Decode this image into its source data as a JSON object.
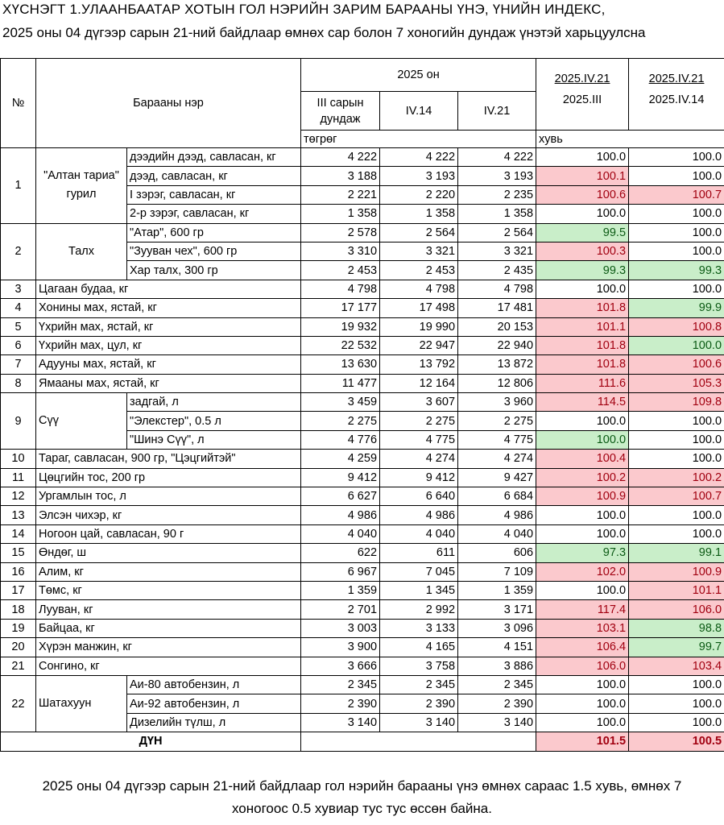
{
  "title_line1": "ХҮСНЭГТ 1.УЛААНБААТАР ХОТЫН ГОЛ НЭРИЙН ЗАРИМ БАРААНЫ ҮНЭ,  ҮНИЙН ИНДЕКС,",
  "title_line2": "2025 оны 04 дүгээр сарын 21-ний байдлаар өмнөх сар болон 7 хоногийн дундаж үнэтэй харьцуулсна",
  "header": {
    "no": "№",
    "name": "Барааны нэр",
    "year": "2025 он",
    "col_march_avg_1": "III сарын",
    "col_march_avg_2": "дундаж",
    "col_iv14": "IV.14",
    "col_iv21": "IV.21",
    "idx1_top": "2025.IV.21",
    "idx1_bottom": "2025.III",
    "idx2_top": "2025.IV.21",
    "idx2_bottom": "2025.IV.14",
    "unit_tugrug": "төгрөг",
    "unit_percent": "хувь"
  },
  "rows": [
    {
      "no": "1",
      "group": "\"Алтан тариа\"\nгурил",
      "name": "дээдийн дээд, савласан, кг",
      "m": "4 222",
      "a": "4 222",
      "b": "4 222",
      "i1": "100.0",
      "i2": "100.0",
      "c1": "plain",
      "c2": "plain"
    },
    {
      "no": "",
      "group": "",
      "name": "дээд, савласан, кг",
      "m": "3 188",
      "a": "3 193",
      "b": "3 193",
      "i1": "100.1",
      "i2": "100.0",
      "c1": "red",
      "c2": "plain"
    },
    {
      "no": "",
      "group": "",
      "name": "I зэрэг, савласан, кг",
      "m": "2 221",
      "a": "2 220",
      "b": "2 235",
      "i1": "100.6",
      "i2": "100.7",
      "c1": "red",
      "c2": "red"
    },
    {
      "no": "",
      "group": "",
      "name": "2-р зэрэг, савласан, кг",
      "m": "1 358",
      "a": "1 358",
      "b": "1 358",
      "i1": "100.0",
      "i2": "100.0",
      "c1": "plain",
      "c2": "plain"
    },
    {
      "no": "2",
      "group": "Талх",
      "name": "\"Атар\", 600 гр",
      "m": "2 578",
      "a": "2 564",
      "b": "2 564",
      "i1": "99.5",
      "i2": "100.0",
      "c1": "green",
      "c2": "plain"
    },
    {
      "no": "",
      "group": "",
      "name": "\"Зууван чех\", 600 гр",
      "m": "3 310",
      "a": "3 321",
      "b": "3 321",
      "i1": "100.3",
      "i2": "100.0",
      "c1": "red",
      "c2": "plain"
    },
    {
      "no": "",
      "group": "",
      "name": "Хар талх, 300 гр",
      "m": "2 453",
      "a": "2 453",
      "b": "2 435",
      "i1": "99.3",
      "i2": "99.3",
      "c1": "green",
      "c2": "green"
    },
    {
      "no": "3",
      "full": "Цагаан будаа, кг",
      "m": "4 798",
      "a": "4 798",
      "b": "4 798",
      "i1": "100.0",
      "i2": "100.0",
      "c1": "plain",
      "c2": "plain"
    },
    {
      "no": "4",
      "full": "Хонины мах, ястай, кг",
      "m": "17 177",
      "a": "17 498",
      "b": "17 481",
      "i1": "101.8",
      "i2": "99.9",
      "c1": "red",
      "c2": "green"
    },
    {
      "no": "5",
      "full": "Үхрийн мах, ястай, кг",
      "m": "19 932",
      "a": "19 990",
      "b": "20 153",
      "i1": "101.1",
      "i2": "100.8",
      "c1": "red",
      "c2": "red"
    },
    {
      "no": "6",
      "full": "Үхрийн мах, цул, кг",
      "m": "22 532",
      "a": "22 947",
      "b": "22 940",
      "i1": "101.8",
      "i2": "100.0",
      "c1": "red",
      "c2": "green"
    },
    {
      "no": "7",
      "full": "Адууны мах, ястай, кг",
      "m": "13 630",
      "a": "13 792",
      "b": "13 872",
      "i1": "101.8",
      "i2": "100.6",
      "c1": "red",
      "c2": "red"
    },
    {
      "no": "8",
      "full": "Ямааны мах, ястай, кг",
      "m": "11 477",
      "a": "12 164",
      "b": "12 806",
      "i1": "111.6",
      "i2": "105.3",
      "c1": "red",
      "c2": "red"
    },
    {
      "no": "9",
      "group": "Сүү",
      "name": "задгай, л",
      "m": "3 459",
      "a": "3 607",
      "b": "3 960",
      "i1": "114.5",
      "i2": "109.8",
      "c1": "red",
      "c2": "red"
    },
    {
      "no": "",
      "group": "",
      "name": "\"Элекстер\", 0.5 л",
      "m": "2 275",
      "a": "2 275",
      "b": "2 275",
      "i1": "100.0",
      "i2": "100.0",
      "c1": "plain",
      "c2": "plain"
    },
    {
      "no": "",
      "group": "",
      "name": "\"Шинэ Сүү\", л",
      "m": "4 776",
      "a": "4 775",
      "b": "4 775",
      "i1": "100.0",
      "i2": "100.0",
      "c1": "green",
      "c2": "plain"
    },
    {
      "no": "10",
      "full": "Тараг, савласан, 900 гр, \"Цэцгийтэй\"",
      "m": "4 259",
      "a": "4 274",
      "b": "4 274",
      "i1": "100.4",
      "i2": "100.0",
      "c1": "red",
      "c2": "plain"
    },
    {
      "no": "11",
      "full": "Цөцгийн тос, 200 гр",
      "m": "9 412",
      "a": "9 412",
      "b": "9 427",
      "i1": "100.2",
      "i2": "100.2",
      "c1": "red",
      "c2": "red"
    },
    {
      "no": "12",
      "full": "Ургамлын тос, л",
      "m": "6 627",
      "a": "6 640",
      "b": "6 684",
      "i1": "100.9",
      "i2": "100.7",
      "c1": "red",
      "c2": "red"
    },
    {
      "no": "13",
      "full": "Элсэн чихэр, кг",
      "m": "4 986",
      "a": "4 986",
      "b": "4 986",
      "i1": "100.0",
      "i2": "100.0",
      "c1": "plain",
      "c2": "plain"
    },
    {
      "no": "14",
      "full": "Ногоон цай, савласан, 90 г",
      "m": "4 040",
      "a": "4 040",
      "b": "4 040",
      "i1": "100.0",
      "i2": "100.0",
      "c1": "plain",
      "c2": "plain"
    },
    {
      "no": "15",
      "full": "Өндөг, ш",
      "m": "622",
      "a": "611",
      "b": "606",
      "i1": "97.3",
      "i2": "99.1",
      "c1": "green",
      "c2": "green"
    },
    {
      "no": "16",
      "full": "Алим, кг",
      "m": "6 967",
      "a": "7 045",
      "b": "7 109",
      "i1": "102.0",
      "i2": "100.9",
      "c1": "red",
      "c2": "red"
    },
    {
      "no": "17",
      "full": "Төмс, кг",
      "m": "1 359",
      "a": "1 345",
      "b": "1 359",
      "i1": "100.0",
      "i2": "101.1",
      "c1": "plain",
      "c2": "red"
    },
    {
      "no": "18",
      "full": "Лууван, кг",
      "m": "2 701",
      "a": "2 992",
      "b": "3 171",
      "i1": "117.4",
      "i2": "106.0",
      "c1": "red",
      "c2": "red"
    },
    {
      "no": "19",
      "full": "Байцаа, кг",
      "m": "3 003",
      "a": "3 133",
      "b": "3 096",
      "i1": "103.1",
      "i2": "98.8",
      "c1": "red",
      "c2": "green"
    },
    {
      "no": "20",
      "full": "Хүрэн манжин, кг",
      "m": "3 900",
      "a": "4 165",
      "b": "4 151",
      "i1": "106.4",
      "i2": "99.7",
      "c1": "red",
      "c2": "green"
    },
    {
      "no": "21",
      "full": "Сонгино, кг",
      "m": "3 666",
      "a": "3 758",
      "b": "3 886",
      "i1": "106.0",
      "i2": "103.4",
      "c1": "red",
      "c2": "red"
    },
    {
      "no": "22",
      "group": "Шатахуун",
      "name": "Аи-80 автобензин, л",
      "m": "2 345",
      "a": "2 345",
      "b": "2 345",
      "i1": "100.0",
      "i2": "100.0",
      "c1": "plain",
      "c2": "plain"
    },
    {
      "no": "",
      "group": "",
      "name": "Аи-92 автобензин, л",
      "m": "2 390",
      "a": "2 390",
      "b": "2 390",
      "i1": "100.0",
      "i2": "100.0",
      "c1": "plain",
      "c2": "plain"
    },
    {
      "no": "",
      "group": "",
      "name": "Дизелийн түлш, л",
      "m": "3 140",
      "a": "3 140",
      "b": "3 140",
      "i1": "100.0",
      "i2": "100.0",
      "c1": "plain",
      "c2": "plain"
    }
  ],
  "total": {
    "label": "ДҮН",
    "i1": "101.5",
    "i2": "100.5"
  },
  "footer_line1": "2025 оны 04 дүгээр сарын 21-ний байдлаар гол нэрийн барааны үнэ өмнөх сараас 1.5 хувь, өмнөх 7",
  "footer_line2": "хоногоос 0.5 хувиар тус тус өссөн байна.",
  "colors": {
    "increase_bg": "#fbc9cd",
    "increase_text": "#a10010",
    "decrease_bg": "#c9eec9",
    "decrease_text": "#0b5a14"
  }
}
